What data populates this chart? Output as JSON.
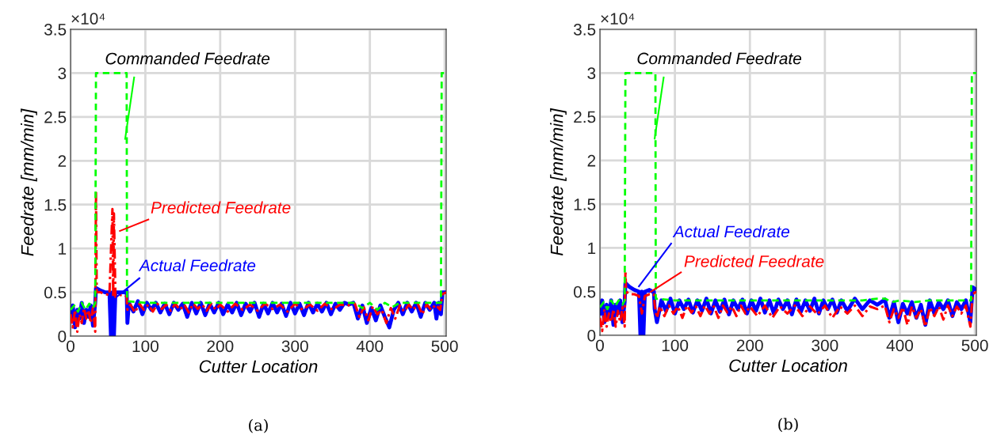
{
  "chart_data": [
    {
      "type": "line",
      "title": "(a)",
      "xlabel": "Cutter Location",
      "ylabel": "Feedrate [mm/min]",
      "annotations": [
        "×10⁴"
      ],
      "xlim": [
        0,
        502
      ],
      "ylim": [
        0,
        3.5
      ],
      "xticks": [
        0,
        100,
        200,
        300,
        400,
        500
      ],
      "yticks": [
        0,
        0.5,
        1,
        1.5,
        2,
        2.5,
        3,
        3.5
      ],
      "grid": true,
      "legend": false,
      "series": [
        {
          "name": "Actual Feedrate",
          "color": "#0000ff",
          "line_style": "solid",
          "x": [
            0,
            3,
            6,
            9,
            12,
            15,
            18,
            21,
            24,
            27,
            30,
            33,
            34,
            40,
            46,
            52,
            54,
            56,
            58,
            60,
            66,
            72,
            75,
            76,
            78,
            84,
            90,
            96,
            102,
            108,
            114,
            120,
            126,
            132,
            138,
            144,
            150,
            156,
            162,
            168,
            174,
            180,
            186,
            192,
            198,
            204,
            210,
            216,
            222,
            228,
            234,
            240,
            246,
            252,
            258,
            264,
            270,
            276,
            282,
            288,
            294,
            300,
            306,
            312,
            318,
            324,
            330,
            336,
            342,
            348,
            354,
            360,
            366,
            372,
            378,
            384,
            390,
            396,
            402,
            408,
            414,
            420,
            426,
            432,
            438,
            444,
            450,
            456,
            462,
            468,
            474,
            480,
            486,
            489,
            492,
            495,
            497,
            502
          ],
          "values": [
            0.2,
            0.35,
            0.1,
            0.3,
            0.2,
            0.38,
            0.15,
            0.3,
            0.22,
            0.35,
            0.12,
            0.38,
            0.55,
            0.52,
            0.5,
            0.5,
            0.0,
            0.5,
            0.0,
            0.5,
            0.5,
            0.5,
            0.52,
            0.15,
            0.38,
            0.28,
            0.4,
            0.25,
            0.38,
            0.3,
            0.38,
            0.27,
            0.37,
            0.25,
            0.38,
            0.3,
            0.37,
            0.22,
            0.38,
            0.26,
            0.38,
            0.24,
            0.37,
            0.27,
            0.38,
            0.25,
            0.36,
            0.27,
            0.38,
            0.24,
            0.37,
            0.28,
            0.38,
            0.22,
            0.37,
            0.26,
            0.38,
            0.27,
            0.37,
            0.23,
            0.38,
            0.26,
            0.37,
            0.24,
            0.38,
            0.27,
            0.37,
            0.28,
            0.38,
            0.25,
            0.37,
            0.3,
            0.38,
            0.36,
            0.38,
            0.2,
            0.35,
            0.15,
            0.32,
            0.18,
            0.35,
            0.22,
            0.1,
            0.3,
            0.38,
            0.25,
            0.38,
            0.28,
            0.38,
            0.22,
            0.38,
            0.3,
            0.38,
            0.2,
            0.38,
            0.25,
            0.5,
            0.5
          ]
        },
        {
          "name": "Predicted Feedrate",
          "color": "#ff0000",
          "line_style": "dashdot",
          "x": [
            0,
            3,
            6,
            9,
            12,
            15,
            18,
            21,
            24,
            27,
            30,
            33,
            34,
            35,
            40,
            46,
            52,
            56,
            57,
            58,
            60,
            66,
            72,
            75,
            76,
            80,
            86,
            92,
            98,
            104,
            110,
            116,
            122,
            128,
            134,
            140,
            146,
            152,
            158,
            164,
            170,
            176,
            182,
            188,
            194,
            200,
            210,
            220,
            230,
            240,
            250,
            260,
            270,
            280,
            290,
            300,
            310,
            320,
            330,
            340,
            350,
            360,
            370,
            380,
            386,
            392,
            398,
            404,
            410,
            416,
            422,
            428,
            434,
            440,
            446,
            452,
            458,
            464,
            470,
            476,
            482,
            488,
            494,
            497,
            502
          ],
          "values": [
            0.25,
            0.1,
            0.3,
            0.05,
            0.25,
            0.15,
            0.32,
            0.2,
            0.3,
            0.15,
            0.33,
            0.05,
            1.65,
            0.5,
            0.5,
            0.48,
            0.47,
            1.45,
            0.45,
            1.4,
            0.45,
            0.47,
            0.47,
            0.45,
            0.3,
            0.36,
            0.27,
            0.37,
            0.3,
            0.36,
            0.28,
            0.37,
            0.31,
            0.36,
            0.29,
            0.37,
            0.3,
            0.36,
            0.27,
            0.37,
            0.31,
            0.36,
            0.29,
            0.37,
            0.3,
            0.36,
            0.28,
            0.37,
            0.3,
            0.36,
            0.29,
            0.37,
            0.31,
            0.36,
            0.28,
            0.37,
            0.3,
            0.36,
            0.29,
            0.37,
            0.3,
            0.36,
            0.35,
            0.37,
            0.22,
            0.33,
            0.18,
            0.34,
            0.25,
            0.3,
            0.15,
            0.32,
            0.2,
            0.35,
            0.28,
            0.36,
            0.3,
            0.37,
            0.25,
            0.36,
            0.3,
            0.36,
            0.3,
            0.48,
            0.5
          ]
        },
        {
          "name": "Commanded Feedrate",
          "color": "#00ff00",
          "line_style": "dashed",
          "x": [
            0,
            5,
            10,
            15,
            20,
            25,
            30,
            33,
            34,
            75,
            75.5,
            100,
            150,
            200,
            250,
            300,
            350,
            380,
            390,
            400,
            410,
            420,
            430,
            440,
            460,
            495,
            496,
            502
          ],
          "values": [
            0.3,
            0.35,
            0.28,
            0.38,
            0.3,
            0.37,
            0.32,
            0.38,
            3,
            3,
            0.4,
            0.38,
            0.38,
            0.38,
            0.38,
            0.38,
            0.38,
            0.38,
            0.32,
            0.38,
            0.3,
            0.38,
            0.33,
            0.38,
            0.38,
            0.38,
            3,
            3
          ]
        }
      ]
    },
    {
      "type": "line",
      "title": "(b)",
      "xlabel": "Cutter Location",
      "ylabel": "Feedrate [mm/min]",
      "annotations": [
        "×10⁴"
      ],
      "xlim": [
        0,
        502
      ],
      "ylim": [
        0,
        3.5
      ],
      "xticks": [
        0,
        100,
        200,
        300,
        400,
        500
      ],
      "yticks": [
        0,
        0.5,
        1,
        1.5,
        2,
        2.5,
        3,
        3.5
      ],
      "grid": true,
      "legend": false,
      "series": [
        {
          "name": "Actual Feedrate",
          "color": "#0000ff",
          "line_style": "solid",
          "x": [
            0,
            3,
            6,
            9,
            12,
            15,
            18,
            21,
            24,
            27,
            30,
            33,
            34,
            40,
            46,
            52,
            54,
            56,
            58,
            60,
            66,
            70,
            72,
            73,
            76,
            82,
            88,
            94,
            100,
            106,
            112,
            118,
            124,
            130,
            136,
            142,
            148,
            154,
            160,
            166,
            172,
            178,
            184,
            190,
            196,
            202,
            208,
            214,
            220,
            226,
            232,
            238,
            244,
            250,
            256,
            262,
            268,
            274,
            280,
            286,
            292,
            298,
            304,
            310,
            316,
            322,
            330,
            340,
            350,
            360,
            370,
            380,
            386,
            392,
            398,
            404,
            410,
            416,
            422,
            428,
            434,
            440,
            446,
            452,
            458,
            464,
            470,
            476,
            482,
            488,
            494,
            497,
            502
          ],
          "values": [
            0.25,
            0.4,
            0.15,
            0.35,
            0.2,
            0.4,
            0.12,
            0.35,
            0.25,
            0.4,
            0.15,
            0.38,
            0.6,
            0.55,
            0.52,
            0.5,
            0.0,
            0.5,
            0.0,
            0.5,
            0.52,
            0.5,
            0.5,
            0.3,
            0.15,
            0.4,
            0.28,
            0.42,
            0.25,
            0.4,
            0.3,
            0.41,
            0.26,
            0.4,
            0.28,
            0.42,
            0.25,
            0.4,
            0.27,
            0.41,
            0.24,
            0.4,
            0.3,
            0.41,
            0.25,
            0.4,
            0.28,
            0.42,
            0.26,
            0.4,
            0.25,
            0.41,
            0.3,
            0.4,
            0.24,
            0.41,
            0.27,
            0.4,
            0.28,
            0.42,
            0.25,
            0.4,
            0.3,
            0.41,
            0.26,
            0.4,
            0.28,
            0.42,
            0.3,
            0.4,
            0.35,
            0.41,
            0.2,
            0.38,
            0.15,
            0.36,
            0.25,
            0.38,
            0.2,
            0.35,
            0.12,
            0.4,
            0.25,
            0.38,
            0.3,
            0.4,
            0.22,
            0.38,
            0.3,
            0.4,
            0.15,
            0.55,
            0.52
          ]
        },
        {
          "name": "Predicted Feedrate",
          "color": "#ff0000",
          "line_style": "dashdot",
          "x": [
            0,
            3,
            6,
            9,
            12,
            15,
            18,
            21,
            24,
            27,
            30,
            33,
            34,
            35,
            40,
            46,
            52,
            56,
            60,
            66,
            72,
            73,
            76,
            80,
            86,
            92,
            98,
            104,
            110,
            116,
            122,
            128,
            134,
            140,
            146,
            152,
            158,
            164,
            170,
            176,
            182,
            188,
            194,
            200,
            210,
            220,
            230,
            240,
            250,
            260,
            270,
            280,
            290,
            300,
            310,
            320,
            330,
            340,
            350,
            360,
            370,
            380,
            386,
            392,
            398,
            404,
            410,
            416,
            422,
            428,
            434,
            440,
            446,
            452,
            458,
            464,
            470,
            476,
            482,
            488,
            494,
            497,
            502
          ],
          "values": [
            0.2,
            0.05,
            0.3,
            0.1,
            0.25,
            0.15,
            0.3,
            0.1,
            0.28,
            0.15,
            0.32,
            0.1,
            0.74,
            0.5,
            0.47,
            0.47,
            0.45,
            0.25,
            0.45,
            0.47,
            0.47,
            0.35,
            0.2,
            0.33,
            0.22,
            0.34,
            0.25,
            0.33,
            0.2,
            0.34,
            0.26,
            0.33,
            0.22,
            0.34,
            0.25,
            0.33,
            0.2,
            0.34,
            0.26,
            0.33,
            0.22,
            0.34,
            0.25,
            0.33,
            0.22,
            0.34,
            0.2,
            0.33,
            0.25,
            0.34,
            0.22,
            0.33,
            0.24,
            0.34,
            0.2,
            0.33,
            0.25,
            0.34,
            0.22,
            0.33,
            0.3,
            0.34,
            0.15,
            0.3,
            0.2,
            0.32,
            0.12,
            0.33,
            0.2,
            0.3,
            0.1,
            0.32,
            0.22,
            0.33,
            0.18,
            0.34,
            0.22,
            0.33,
            0.25,
            0.34,
            0.1,
            0.47,
            0.5
          ]
        },
        {
          "name": "Commanded Feedrate",
          "color": "#00ff00",
          "line_style": "dashed",
          "x": [
            0,
            5,
            10,
            15,
            20,
            25,
            30,
            33,
            34,
            74,
            74.5,
            100,
            150,
            200,
            250,
            300,
            350,
            370,
            380,
            390,
            400,
            420,
            440,
            460,
            495,
            496,
            502
          ],
          "values": [
            0.32,
            0.38,
            0.3,
            0.4,
            0.33,
            0.4,
            0.35,
            0.4,
            3,
            3,
            0.42,
            0.4,
            0.4,
            0.4,
            0.4,
            0.4,
            0.4,
            0.42,
            0.42,
            0.38,
            0.4,
            0.38,
            0.4,
            0.4,
            0.4,
            3,
            3
          ]
        }
      ]
    }
  ]
}
